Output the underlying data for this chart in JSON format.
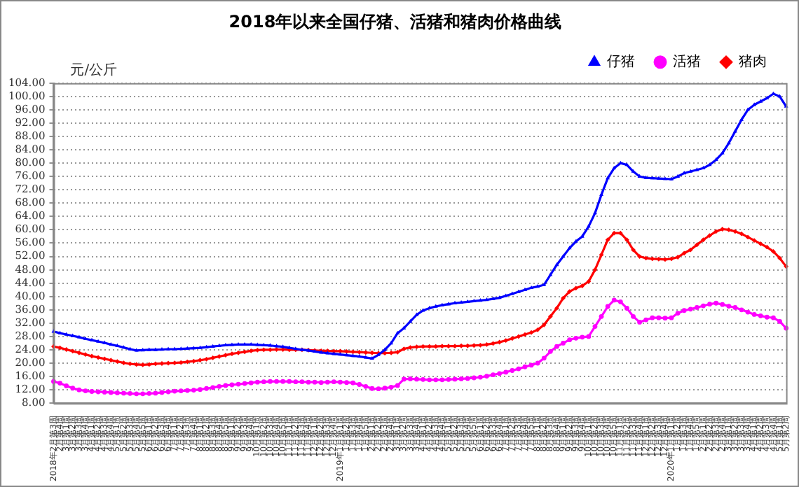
{
  "chart_data": {
    "type": "line",
    "title": "2018年以来全国仔猪、活猪和猪肉价格曲线",
    "ylabel": "元/公斤",
    "categories": [
      "2018年2月第3周",
      "2月第4周",
      "3月第1周",
      "3月第2周",
      "3月第3周",
      "3月第4周",
      "4月第1周",
      "4月第2周",
      "4月第3周",
      "4月第4周",
      "5月第1周",
      "5月第2周",
      "5月第3周",
      "5月第4周",
      "5月第5周",
      "6月第1周",
      "6月第2周",
      "6月第3周",
      "6月第4周",
      "7月第1周",
      "7月第2周",
      "7月第3周",
      "7月第4周",
      "8月第1周",
      "8月第2周",
      "8月第3周",
      "8月第4周",
      "8月第5周",
      "9月第1周",
      "9月第2周",
      "9月第3周",
      "9月第4周",
      "10月第1周",
      "10月第2周",
      "10月第3周",
      "10月第4周",
      "10月第5周",
      "11月第1周",
      "11月第2周",
      "11月第3周",
      "11月第4周",
      "12月第1周",
      "12月第2周",
      "12月第3周",
      "12月第4周",
      "2019年1月第1周",
      "1月第2周",
      "1月第3周",
      "1月第4周",
      "1月第5周",
      "2月第1周",
      "2月第2周",
      "2月第3周",
      "2月第4周",
      "3月第1周",
      "3月第2周",
      "3月第3周",
      "3月第4周",
      "4月第1周",
      "4月第2周",
      "4月第3周",
      "4月第4周",
      "5月第1周",
      "5月第2周",
      "5月第3周",
      "5月第4周",
      "5月第5周",
      "6月第1周",
      "6月第2周",
      "6月第3周",
      "6月第4周",
      "7月第1周",
      "7月第2周",
      "7月第3周",
      "7月第4周",
      "7月第5周",
      "8月第1周",
      "8月第2周",
      "8月第3周",
      "8月第4周",
      "9月第1周",
      "9月第2周",
      "9月第3周",
      "9月第4周",
      "10月第1周",
      "10月第2周",
      "10月第3周",
      "10月第4周",
      "10月第5周",
      "11月第1周",
      "11月第2周",
      "11月第3周",
      "11月第4周",
      "12月第1周",
      "12月第2周",
      "12月第3周",
      "12月第4周",
      "2020年1月第1周",
      "1月第2周",
      "1月第3周",
      "1月第4周",
      "1月第5周",
      "2月第1周",
      "2月第2周",
      "2月第3周",
      "2月第4周",
      "3月第1周",
      "3月第2周",
      "3月第3周",
      "3月第4周",
      "4月第1周",
      "4月第2周",
      "4月第3周",
      "4月第4周",
      "5月第1周",
      "5月第2周"
    ],
    "series": [
      {
        "name": "仔猪",
        "color": "#0000ff",
        "marker": "triangle",
        "values": [
          29.5,
          29,
          28.6,
          28.2,
          27.8,
          27.3,
          26.9,
          26.5,
          26.1,
          25.6,
          25.2,
          24.7,
          24.2,
          23.8,
          23.9,
          24,
          24,
          24.1,
          24.2,
          24.2,
          24.3,
          24.4,
          24.5,
          24.6,
          24.8,
          25,
          25.2,
          25.4,
          25.5,
          25.6,
          25.6,
          25.6,
          25.5,
          25.4,
          25.3,
          25.1,
          24.9,
          24.6,
          24.3,
          24,
          23.8,
          23.5,
          23.2,
          23,
          22.8,
          22.6,
          22.4,
          22.2,
          22,
          21.7,
          21.4,
          22.5,
          24,
          26,
          29,
          30.5,
          32.5,
          34.5,
          35.8,
          36.5,
          37,
          37.4,
          37.7,
          38,
          38.2,
          38.4,
          38.6,
          38.8,
          39,
          39.3,
          39.6,
          40.2,
          40.8,
          41.4,
          42,
          42.6,
          43,
          43.5,
          46.5,
          49.5,
          52,
          54.5,
          56.5,
          58,
          61,
          65,
          70.5,
          75.5,
          78.5,
          80,
          79.5,
          77.5,
          76,
          75.6,
          75.5,
          75.4,
          75.3,
          75.2,
          76,
          77,
          77.5,
          78,
          78.5,
          79.5,
          81,
          83,
          86,
          89.5,
          93,
          96,
          97.5,
          98.5,
          99.5,
          100.8,
          100,
          97
        ]
      },
      {
        "name": "活猪",
        "color": "#ff00ff",
        "marker": "circle",
        "values": [
          14.5,
          14,
          13.2,
          12.5,
          12,
          11.7,
          11.5,
          11.4,
          11.3,
          11.2,
          11.1,
          11,
          10.9,
          10.8,
          10.8,
          10.9,
          11,
          11.2,
          11.4,
          11.6,
          11.7,
          11.8,
          11.9,
          12.1,
          12.4,
          12.7,
          13,
          13.3,
          13.5,
          13.7,
          13.9,
          14.1,
          14.3,
          14.4,
          14.5,
          14.5,
          14.5,
          14.5,
          14.4,
          14.4,
          14.3,
          14.3,
          14.2,
          14.3,
          14.4,
          14.3,
          14.2,
          14.1,
          13.6,
          13,
          12.4,
          12.3,
          12.5,
          12.8,
          13.3,
          15.2,
          15.3,
          15.2,
          15.1,
          15,
          15,
          15,
          15.1,
          15.2,
          15.3,
          15.4,
          15.6,
          15.8,
          16.1,
          16.5,
          16.9,
          17.3,
          17.8,
          18.3,
          18.9,
          19.4,
          20,
          21.5,
          23.5,
          25,
          26,
          27,
          27.5,
          27.8,
          28,
          31,
          34,
          37,
          38.9,
          38.4,
          36.5,
          34,
          32.3,
          33,
          33.6,
          33.6,
          33.5,
          33.6,
          35,
          35.8,
          36.2,
          36.7,
          37.2,
          37.7,
          38,
          37.6,
          37.1,
          36.7,
          36,
          35.3,
          34.6,
          34.2,
          33.8,
          33.6,
          32.5,
          30.5
        ]
      },
      {
        "name": "猪肉",
        "color": "#ff0000",
        "marker": "diamond",
        "values": [
          25,
          24.6,
          24.1,
          23.6,
          23.1,
          22.6,
          22.1,
          21.7,
          21.3,
          20.9,
          20.5,
          20.1,
          19.8,
          19.6,
          19.5,
          19.6,
          19.8,
          19.9,
          20,
          20.1,
          20.2,
          20.4,
          20.6,
          20.9,
          21.2,
          21.6,
          22,
          22.4,
          22.8,
          23.1,
          23.4,
          23.7,
          23.9,
          24,
          24,
          24.1,
          24.1,
          24,
          24,
          24,
          23.9,
          23.8,
          23.7,
          23.7,
          23.6,
          23.6,
          23.5,
          23.4,
          23.3,
          23.2,
          23.1,
          23,
          23,
          23.1,
          23.3,
          24.3,
          24.7,
          24.9,
          25,
          25,
          25,
          25.1,
          25.1,
          25.1,
          25.2,
          25.2,
          25.3,
          25.4,
          25.6,
          25.9,
          26.3,
          26.8,
          27.4,
          28,
          28.6,
          29.2,
          30,
          31.5,
          34,
          36.5,
          39.5,
          41.5,
          42.5,
          43.2,
          44.5,
          48,
          52.5,
          57,
          59,
          59,
          57,
          54,
          52,
          51.5,
          51.3,
          51.2,
          51.1,
          51.3,
          51.8,
          53,
          54,
          55.5,
          57,
          58.3,
          59.5,
          60.2,
          60,
          59.5,
          58.8,
          57.8,
          56.8,
          55.8,
          54.8,
          53.5,
          51.5,
          49
        ]
      }
    ],
    "ylim": [
      8,
      104
    ],
    "yticks": [
      {
        "value": 8,
        "label": "8.00"
      },
      {
        "value": 12,
        "label": "12.00"
      },
      {
        "value": 16,
        "label": "16.00"
      },
      {
        "value": 20,
        "label": "20.00"
      },
      {
        "value": 24,
        "label": "24.00"
      },
      {
        "value": 28,
        "label": "28.00"
      },
      {
        "value": 32,
        "label": "32.00"
      },
      {
        "value": 36,
        "label": "36.00"
      },
      {
        "value": 40,
        "label": "40.00"
      },
      {
        "value": 44,
        "label": "44.00"
      },
      {
        "value": 48,
        "label": "48.00"
      },
      {
        "value": 52,
        "label": "52.00"
      },
      {
        "value": 56,
        "label": "56.00"
      },
      {
        "value": 60,
        "label": "60.00"
      },
      {
        "value": 64,
        "label": "64.00"
      },
      {
        "value": 68,
        "label": "68.00"
      },
      {
        "value": 72,
        "label": "72.00"
      },
      {
        "value": 76,
        "label": "76.00"
      },
      {
        "value": 80,
        "label": "80.00"
      },
      {
        "value": 84,
        "label": "84.00"
      },
      {
        "value": 88,
        "label": "88.00"
      },
      {
        "value": 92,
        "label": "92.00"
      },
      {
        "value": 96,
        "label": "96.00"
      },
      {
        "value": 100,
        "label": "100.00"
      },
      {
        "value": 104,
        "label": "104.00"
      }
    ],
    "grid": "y",
    "legend": "top right",
    "line_style": "solid"
  }
}
